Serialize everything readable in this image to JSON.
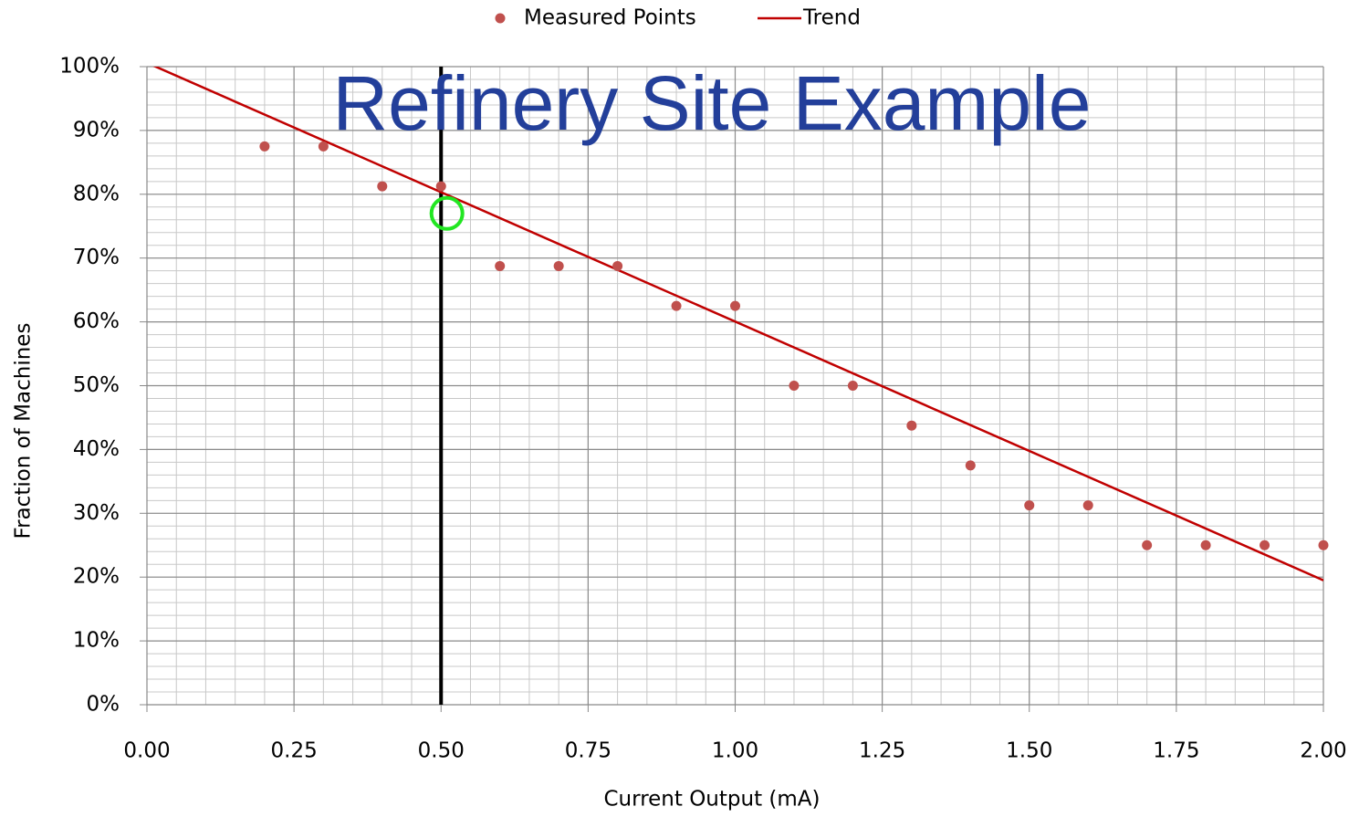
{
  "chart_data": {
    "type": "scatter",
    "title": "Refinery Site Example",
    "title_color": "#233f9a",
    "x_label": "Current Output (mA)",
    "y_label": "Fraction of Machines",
    "xlim": [
      0,
      2
    ],
    "ylim": [
      0,
      100
    ],
    "xticks": [
      {
        "value": 0,
        "label": "0.00"
      },
      {
        "value": 0.25,
        "label": "0.25"
      },
      {
        "value": 0.5,
        "label": "0.50"
      },
      {
        "value": 0.75,
        "label": "0.75"
      },
      {
        "value": 1,
        "label": "1.00"
      },
      {
        "value": 1.25,
        "label": "1.25"
      },
      {
        "value": 1.5,
        "label": "1.50"
      },
      {
        "value": 1.75,
        "label": "1.75"
      },
      {
        "value": 2,
        "label": "2.00"
      }
    ],
    "yticks": [
      {
        "value": 0,
        "label": "0%"
      },
      {
        "value": 10,
        "label": "10%"
      },
      {
        "value": 20,
        "label": "20%"
      },
      {
        "value": 30,
        "label": "30%"
      },
      {
        "value": 40,
        "label": "40%"
      },
      {
        "value": 50,
        "label": "50%"
      },
      {
        "value": 60,
        "label": "60%"
      },
      {
        "value": 70,
        "label": "70%"
      },
      {
        "value": 80,
        "label": "80%"
      },
      {
        "value": 90,
        "label": "90%"
      },
      {
        "value": 100,
        "label": "100%"
      }
    ],
    "grid": true,
    "minor_grid": {
      "x": 0.05,
      "y": 2
    },
    "legend": "top",
    "series": [
      {
        "name": "Measured Points",
        "color": "#c0504d",
        "kind": "points",
        "x": [
          0.2,
          0.3,
          0.4,
          0.5,
          0.6,
          0.7,
          0.8,
          0.9,
          1.0,
          1.1,
          1.2,
          1.3,
          1.4,
          1.5,
          1.6,
          1.7,
          1.8,
          1.9,
          2.0
        ],
        "values": [
          87.5,
          87.5,
          81.25,
          81.25,
          68.75,
          68.75,
          68.75,
          62.5,
          62.5,
          50,
          50,
          43.75,
          37.5,
          31.25,
          31.25,
          25,
          25,
          25,
          25
        ]
      },
      {
        "name": "Trend",
        "color": "#c00000",
        "kind": "line",
        "x": [
          0,
          2
        ],
        "values": [
          100.6,
          19.5
        ]
      }
    ],
    "reference_line": {
      "x": 0.5,
      "color": "#000000"
    },
    "highlight": {
      "x": 0.51,
      "y": 77,
      "color": "#22e622"
    }
  }
}
